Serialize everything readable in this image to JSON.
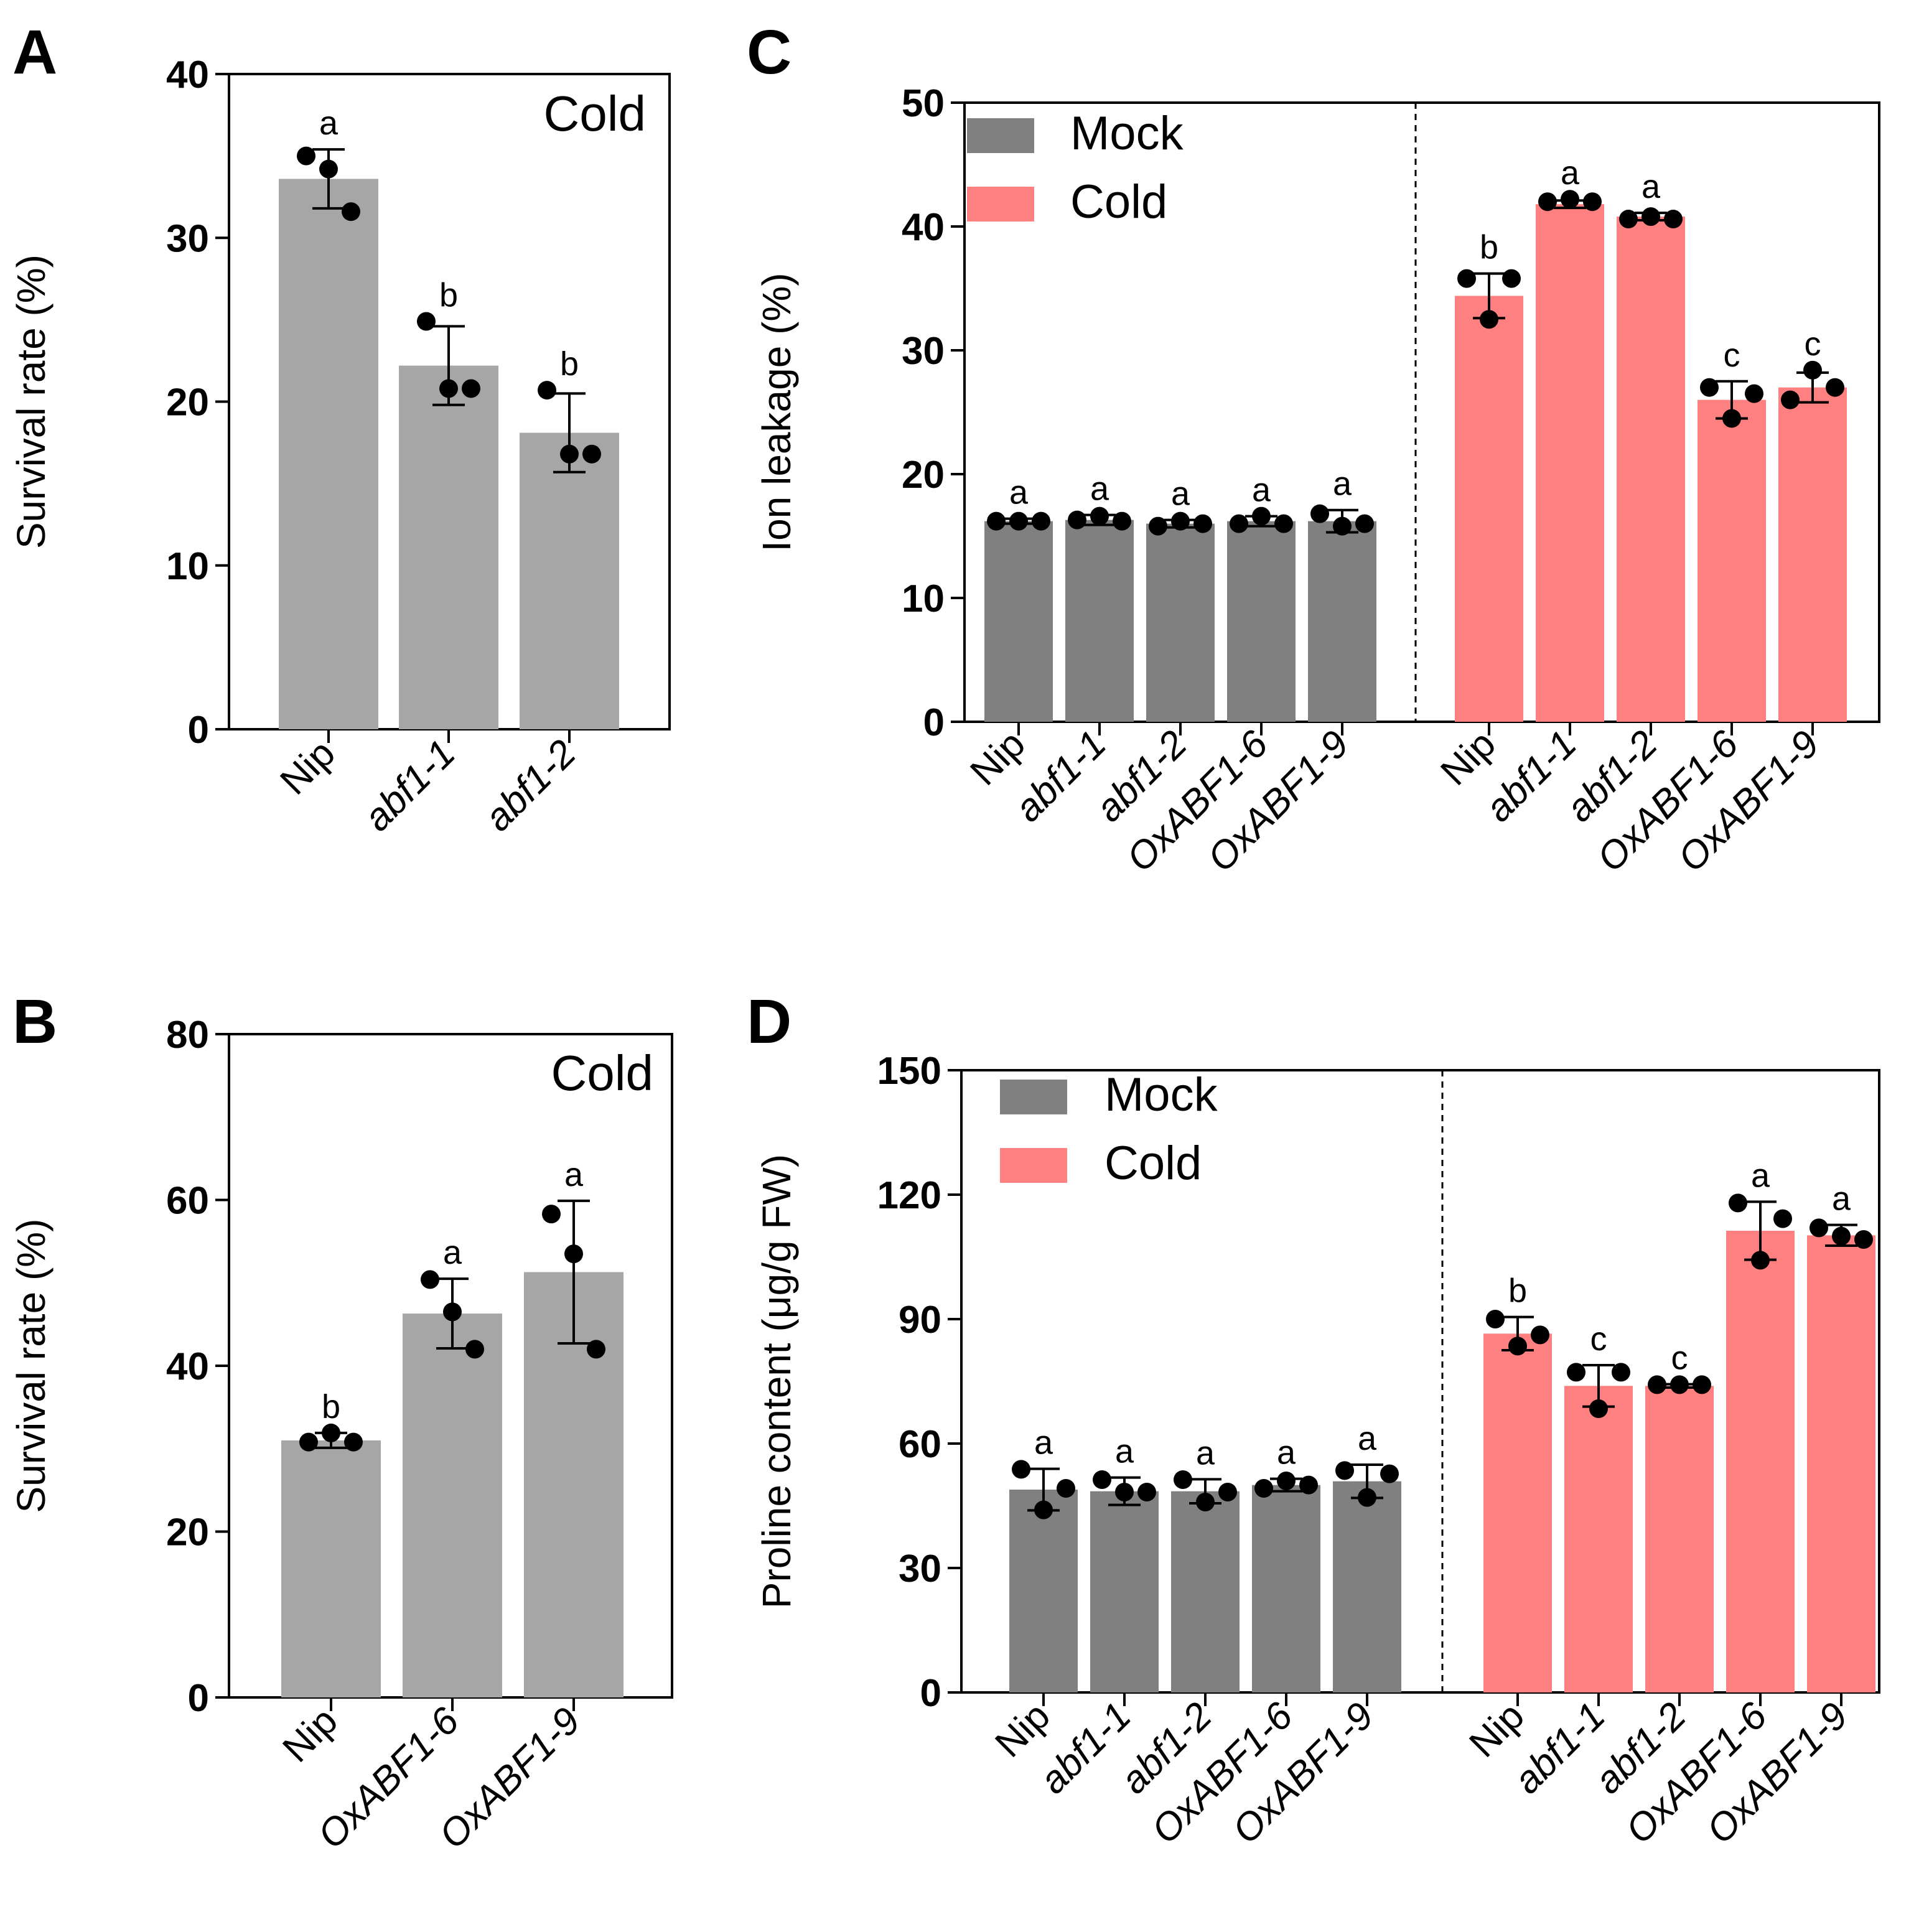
{
  "figure": {
    "colors": {
      "single": "#a6a6a6",
      "mock": "#808080",
      "cold": "#ff8080",
      "axis": "#000000",
      "point": "#000000"
    }
  },
  "chart_data": [
    {
      "panel": "A",
      "type": "bar",
      "condition_label": "Cold",
      "ylabel": "Survival rate (%)",
      "ylim": [
        0,
        40
      ],
      "yticks": [
        0,
        10,
        20,
        30,
        40
      ],
      "categories": [
        "Nip",
        "abf1-1",
        "abf1-2"
      ],
      "italic": [
        false,
        true,
        true
      ],
      "series": [
        {
          "name": "Cold",
          "values": [
            33.6,
            22.2,
            18.1
          ],
          "errors": [
            1.8,
            2.4,
            2.4
          ],
          "points": [
            [
              35.0,
              34.2,
              31.6
            ],
            [
              24.9,
              20.8,
              20.8
            ],
            [
              20.7,
              16.8,
              16.8
            ]
          ],
          "letters": [
            "a",
            "b",
            "b"
          ]
        }
      ]
    },
    {
      "panel": "B",
      "type": "bar",
      "condition_label": "Cold",
      "ylabel": "Survival rate (%)",
      "ylim": [
        0,
        80
      ],
      "yticks": [
        0,
        20,
        40,
        60,
        80
      ],
      "categories": [
        "Nip",
        "OxABF1-6",
        "OxABF1-9"
      ],
      "italic": [
        false,
        true,
        true
      ],
      "series": [
        {
          "name": "Cold",
          "values": [
            31.0,
            46.3,
            51.3
          ],
          "errors": [
            0.9,
            4.2,
            8.6
          ],
          "points": [
            [
              30.8,
              31.9,
              30.8
            ],
            [
              50.4,
              46.5,
              42.0
            ],
            [
              58.3,
              53.5,
              42.0
            ]
          ],
          "letters": [
            "b",
            "a",
            "a"
          ]
        }
      ]
    },
    {
      "panel": "C",
      "type": "bar",
      "ylabel": "Ion leakage (%)",
      "ylim": [
        0,
        50
      ],
      "yticks": [
        0,
        10,
        20,
        30,
        40,
        50
      ],
      "legend": [
        "Mock",
        "Cold"
      ],
      "categories": [
        "Nip",
        "abf1-1",
        "abf1-2",
        "OxABF1-6",
        "OxABF1-9"
      ],
      "italic": [
        false,
        true,
        true,
        true,
        true
      ],
      "series": [
        {
          "name": "Mock",
          "values": [
            16.2,
            16.3,
            16.0,
            16.2,
            16.2
          ],
          "errors": [
            0.2,
            0.4,
            0.3,
            0.4,
            0.9
          ],
          "points": [
            [
              16.2,
              16.2,
              16.2
            ],
            [
              16.3,
              16.6,
              16.2
            ],
            [
              15.8,
              16.2,
              16.0
            ],
            [
              16.0,
              16.6,
              16.0
            ],
            [
              16.8,
              15.8,
              16.0
            ]
          ],
          "letters": [
            "a",
            "a",
            "a",
            "a",
            "a"
          ]
        },
        {
          "name": "Cold",
          "values": [
            34.4,
            41.8,
            40.8,
            26.0,
            27.0
          ],
          "errors": [
            1.8,
            0.3,
            0.3,
            1.5,
            1.2
          ],
          "points": [
            [
              35.8,
              32.5,
              35.8
            ],
            [
              42.0,
              42.2,
              42.0
            ],
            [
              40.6,
              40.8,
              40.6
            ],
            [
              27.0,
              24.5,
              26.5
            ],
            [
              26.0,
              28.4,
              27.0
            ]
          ],
          "letters": [
            "b",
            "a",
            "a",
            "c",
            "c"
          ]
        }
      ]
    },
    {
      "panel": "D",
      "type": "bar",
      "ylabel": "Proline content (μg/g FW)",
      "ylim": [
        0,
        150
      ],
      "yticks": [
        0,
        30,
        60,
        90,
        120,
        150
      ],
      "legend": [
        "Mock",
        "Cold"
      ],
      "categories": [
        "Nip",
        "abf1-1",
        "abf1-2",
        "OxABF1-6",
        "OxABF1-9"
      ],
      "italic": [
        false,
        true,
        true,
        true,
        true
      ],
      "series": [
        {
          "name": "Mock",
          "values": [
            48.9,
            48.5,
            48.5,
            50.0,
            50.9
          ],
          "errors": [
            5.0,
            3.3,
            2.9,
            1.5,
            4.0
          ],
          "points": [
            [
              53.8,
              44.0,
              49.2
            ],
            [
              51.3,
              48.3,
              48.3
            ],
            [
              51.3,
              45.9,
              48.3
            ],
            [
              49.2,
              51.0,
              50.0
            ],
            [
              53.5,
              47.0,
              52.7
            ]
          ],
          "letters": [
            "a",
            "a",
            "a",
            "a",
            "a"
          ]
        },
        {
          "name": "Cold",
          "values": [
            86.5,
            73.9,
            73.9,
            111.3,
            110.2
          ],
          "errors": [
            4.0,
            5.0,
            0.4,
            7.0,
            2.5
          ],
          "points": [
            [
              90.0,
              83.5,
              86.2
            ],
            [
              77.2,
              68.4,
              77.2
            ],
            [
              74.2,
              74.2,
              74.2
            ],
            [
              118.0,
              104.2,
              114.2
            ],
            [
              112.0,
              110.0,
              109.2
            ]
          ],
          "letters": [
            "b",
            "c",
            "c",
            "a",
            "a"
          ]
        }
      ]
    }
  ]
}
